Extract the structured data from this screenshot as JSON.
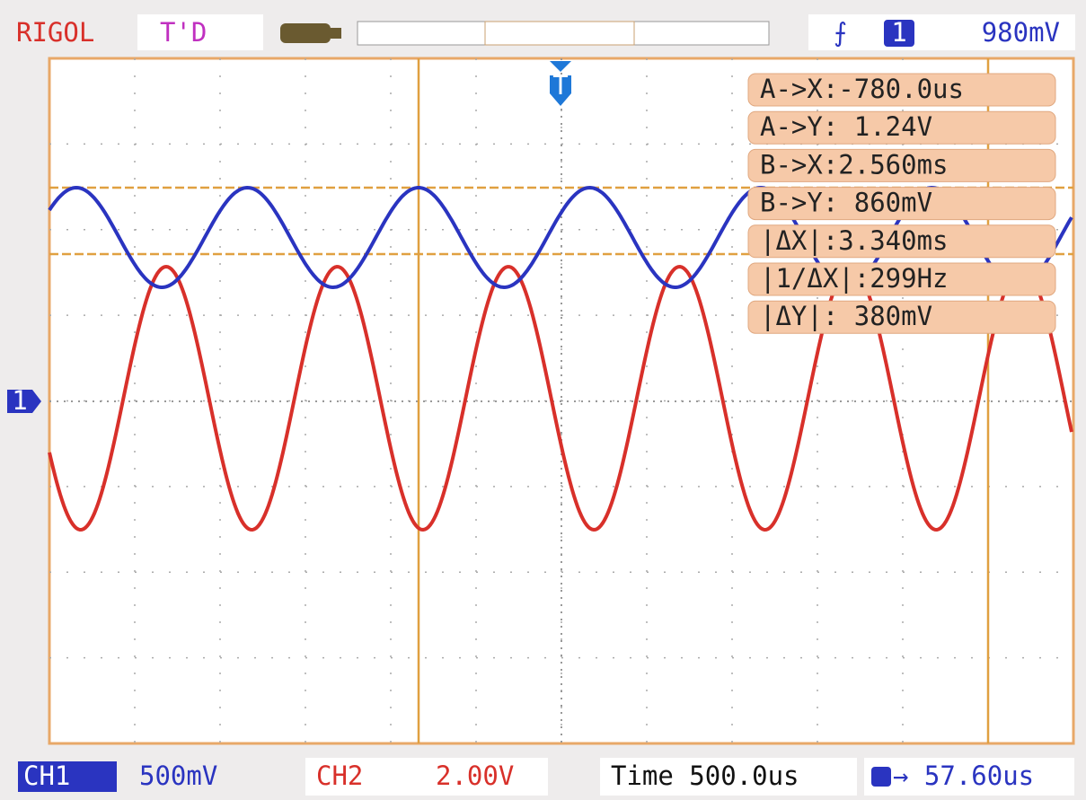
{
  "header": {
    "brand": "RIGOL",
    "status": "T'D",
    "trigger_channel": "1",
    "trigger_level": "980mV"
  },
  "trigger_marker": "T",
  "channel_marker": "1",
  "readouts": [
    "A->X:-780.0us",
    "A->Y: 1.24V",
    "B->X:2.560ms",
    "B->Y: 860mV",
    "|ΔX|:3.340ms",
    "|1/ΔX|:299Hz",
    "|ΔY|: 380mV"
  ],
  "footer": {
    "ch1_label": "CH1",
    "ch1_scale": "500mV",
    "ch2_label": "CH2",
    "ch2_scale": "2.00V",
    "timebase": "Time 500.0us",
    "trigger_offset": "→ 57.60us"
  }
}
